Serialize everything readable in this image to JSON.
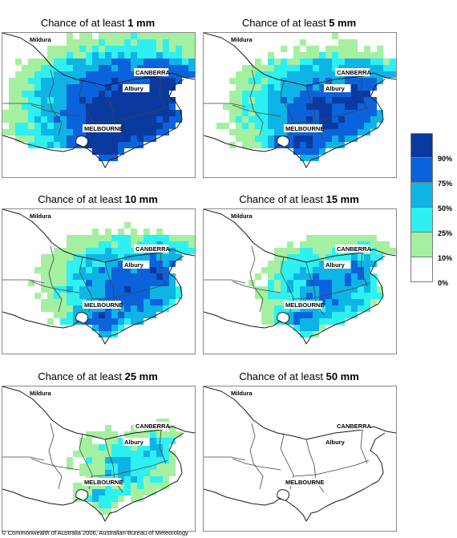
{
  "panels": [
    {
      "prefix": "Chance of at least ",
      "amount": "1 mm",
      "level": 5
    },
    {
      "prefix": "Chance of at least ",
      "amount": "5 mm",
      "level": 4
    },
    {
      "prefix": "Chance of at least ",
      "amount": "10 mm",
      "level": 3
    },
    {
      "prefix": "Chance of at least ",
      "amount": "15 mm",
      "level": 2
    },
    {
      "prefix": "Chance of at least ",
      "amount": "25 mm",
      "level": 1
    },
    {
      "prefix": "Chance of at least ",
      "amount": "50 mm",
      "level": 0
    }
  ],
  "cities": {
    "mildura": "Mildura",
    "canberra": "CANBERRA",
    "albury": "Albury",
    "melbourne": "MELBOURNE"
  },
  "legend": {
    "colors": [
      "#0a3aa0",
      "#0b63dc",
      "#0eb4e6",
      "#2ef0f0",
      "#a4f0a0",
      "#ffffff"
    ],
    "labels": [
      "90%",
      "75%",
      "50%",
      "25%",
      "10%",
      "0%"
    ]
  },
  "copyright": "© Commonwealth of Australia 2006, Australian Bureau of Meteorology"
}
